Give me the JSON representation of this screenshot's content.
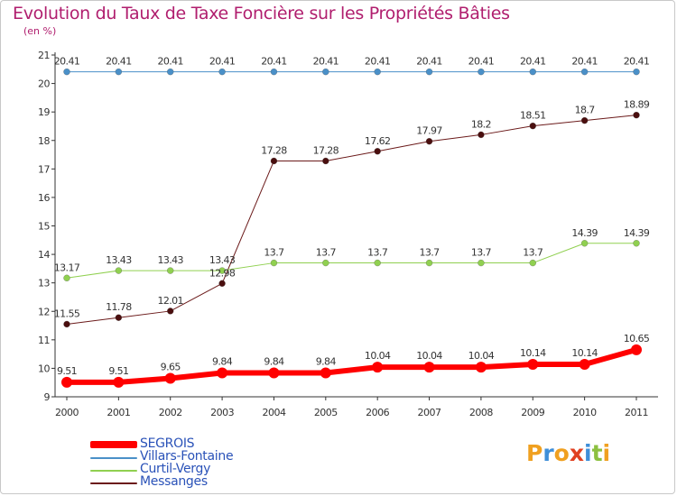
{
  "title": "Evolution du Taux de Taxe Foncière sur les Propriétés Bâties",
  "unit_label": "(en %)",
  "logo": {
    "text": "Proxiti",
    "letters": [
      {
        "ch": "P",
        "color": "#f0a020"
      },
      {
        "ch": "r",
        "color": "#3f8fd8"
      },
      {
        "ch": "o",
        "color": "#f0a020"
      },
      {
        "ch": "x",
        "color": "#e04020"
      },
      {
        "ch": "i",
        "color": "#3f8fd8"
      },
      {
        "ch": "t",
        "color": "#8cc040"
      },
      {
        "ch": "i",
        "color": "#f0a020"
      }
    ]
  },
  "chart_data": {
    "type": "line",
    "title": "Evolution du Taux de Taxe Foncière sur les Propriétés Bâties",
    "ylabel": "(en %)",
    "xlabel": "",
    "x": [
      "2000",
      "2001",
      "2002",
      "2003",
      "2004",
      "2005",
      "2006",
      "2007",
      "2008",
      "2009",
      "2010",
      "2011"
    ],
    "ylim": [
      9,
      21
    ],
    "yticks": [
      9,
      10,
      11,
      12,
      13,
      14,
      15,
      16,
      17,
      18,
      19,
      20,
      21
    ],
    "grid": false,
    "legend_position": "bottom-left",
    "series": [
      {
        "name": "SEGROIS",
        "color": "#ff0000",
        "values": [
          9.51,
          9.51,
          9.65,
          9.84,
          9.84,
          9.84,
          10.04,
          10.04,
          10.04,
          10.14,
          10.14,
          10.65
        ],
        "labels": [
          "9.51",
          "9.51",
          "9.65",
          "9.84",
          "9.84",
          "9.84",
          "10.04",
          "10.04",
          "10.04",
          "10.14",
          "10.14",
          "10.65"
        ]
      },
      {
        "name": "Villars-Fontaine",
        "color": "#4a90c8",
        "values": [
          20.41,
          20.41,
          20.41,
          20.41,
          20.41,
          20.41,
          20.41,
          20.41,
          20.41,
          20.41,
          20.41,
          20.41
        ],
        "labels": [
          "20.41",
          "20.41",
          "20.41",
          "20.41",
          "20.41",
          "20.41",
          "20.41",
          "20.41",
          "20.41",
          "20.41",
          "20.41",
          "20.41"
        ]
      },
      {
        "name": "Curtil-Vergy",
        "color": "#90d050",
        "values": [
          13.17,
          13.43,
          13.43,
          13.43,
          13.7,
          13.7,
          13.7,
          13.7,
          13.7,
          13.7,
          14.39,
          14.39
        ],
        "labels": [
          "13.17",
          "13.43",
          "13.43",
          "13.43",
          "13.7",
          "13.7",
          "13.7",
          "13.7",
          "13.7",
          "13.7",
          "14.39",
          "14.39"
        ]
      },
      {
        "name": "Messanges",
        "color": "#6b1a1a",
        "values": [
          11.55,
          11.78,
          12.01,
          12.98,
          17.28,
          17.28,
          17.62,
          17.97,
          18.2,
          18.51,
          18.7,
          18.89
        ],
        "labels": [
          "11.55",
          "11.78",
          "12.01",
          "12.98",
          "17.28",
          "17.28",
          "17.62",
          "17.97",
          "18.2",
          "18.51",
          "18.7",
          "18.89"
        ]
      }
    ]
  }
}
